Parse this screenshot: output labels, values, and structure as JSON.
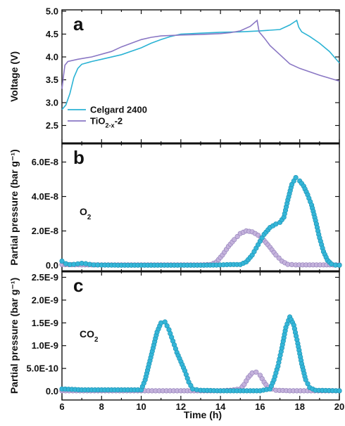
{
  "colors": {
    "celgard": "#2bb3d4",
    "tio2": "#8a77c4",
    "celgard_marker": "#35b6d8",
    "tio2_marker": "#c4b2dc",
    "axis": "#111111"
  },
  "xlabel": "Time (h)",
  "chart_data": [
    {
      "panel": "a",
      "type": "line",
      "ylabel": "Voltage (V)",
      "xlim": [
        6,
        20
      ],
      "ylim": [
        2.2,
        5.0
      ],
      "xticks": [
        6,
        8,
        10,
        12,
        14,
        16,
        18,
        20
      ],
      "yticks": [
        2.5,
        3.0,
        3.5,
        4.0,
        4.5,
        5.0
      ],
      "ytick_labels": [
        "2.5",
        "3.0",
        "3.5",
        "4.0",
        "4.5",
        "5.0"
      ],
      "legend": {
        "placement": "bottom-left",
        "items": [
          "Celgard 2400",
          "TiO<sub>2-x</sub>-2"
        ]
      },
      "series": [
        {
          "name": "Celgard 2400",
          "points": [
            [
              6.0,
              2.85
            ],
            [
              6.2,
              2.95
            ],
            [
              6.4,
              3.2
            ],
            [
              6.6,
              3.55
            ],
            [
              6.8,
              3.75
            ],
            [
              7.0,
              3.84
            ],
            [
              7.5,
              3.9
            ],
            [
              8,
              3.95
            ],
            [
              9,
              4.05
            ],
            [
              10,
              4.2
            ],
            [
              10.5,
              4.3
            ],
            [
              11,
              4.38
            ],
            [
              11.5,
              4.45
            ],
            [
              12,
              4.5
            ],
            [
              13,
              4.52
            ],
            [
              14,
              4.54
            ],
            [
              15,
              4.55
            ],
            [
              16,
              4.57
            ],
            [
              17,
              4.6
            ],
            [
              17.5,
              4.7
            ],
            [
              17.85,
              4.8
            ],
            [
              17.95,
              4.65
            ],
            [
              18.1,
              4.55
            ],
            [
              18.5,
              4.45
            ],
            [
              19,
              4.3
            ],
            [
              19.5,
              4.12
            ],
            [
              20,
              3.87
            ]
          ]
        },
        {
          "name": "TiO<sub>2-x</sub>-2",
          "points": [
            [
              6.0,
              3.3
            ],
            [
              6.08,
              3.6
            ],
            [
              6.15,
              3.82
            ],
            [
              6.3,
              3.9
            ],
            [
              6.8,
              3.95
            ],
            [
              7.5,
              4.0
            ],
            [
              8.5,
              4.12
            ],
            [
              9,
              4.22
            ],
            [
              9.5,
              4.3
            ],
            [
              10,
              4.38
            ],
            [
              10.5,
              4.43
            ],
            [
              11,
              4.46
            ],
            [
              12,
              4.48
            ],
            [
              13,
              4.49
            ],
            [
              14,
              4.51
            ],
            [
              14.5,
              4.53
            ],
            [
              15,
              4.57
            ],
            [
              15.5,
              4.67
            ],
            [
              15.85,
              4.8
            ],
            [
              15.95,
              4.55
            ],
            [
              16.2,
              4.42
            ],
            [
              16.5,
              4.25
            ],
            [
              17,
              4.05
            ],
            [
              17.5,
              3.85
            ],
            [
              18,
              3.75
            ],
            [
              19,
              3.6
            ],
            [
              20,
              3.47
            ]
          ]
        }
      ]
    },
    {
      "panel": "b",
      "type": "scatter",
      "ylabel": "Partial pressure (bar g⁻¹)",
      "annotation": "O<sub>2</sub>",
      "xlim": [
        6,
        20
      ],
      "ylim": [
        -1e-09,
        7e-08
      ],
      "yticks": [
        0,
        2e-08,
        4e-08,
        6e-08
      ],
      "ytick_labels": [
        "0.0",
        "2.0E-8",
        "4.0E-8",
        "6.0E-8"
      ],
      "series": [
        {
          "name": "Celgard 2400",
          "points": [
            [
              6.0,
              2.5e-09
            ],
            [
              6.2,
              1e-09
            ],
            [
              6.4,
              5e-10
            ],
            [
              6.6,
              6e-10
            ],
            [
              6.8,
              9e-10
            ],
            [
              7.0,
              1.2e-09
            ],
            [
              7.2,
              1e-09
            ],
            [
              7.4,
              6e-10
            ],
            [
              7.6,
              3e-10
            ],
            [
              8.0,
              2e-10
            ],
            [
              9.0,
              1e-10
            ],
            [
              10.0,
              1e-10
            ],
            [
              11.0,
              1e-10
            ],
            [
              12.0,
              1e-10
            ],
            [
              13.0,
              1e-10
            ],
            [
              13.8,
              2e-10
            ],
            [
              14.5,
              5e-10
            ],
            [
              15.0,
              5e-10
            ],
            [
              15.3,
              2e-09
            ],
            [
              15.6,
              6e-09
            ],
            [
              15.9,
              1.2e-08
            ],
            [
              16.2,
              1.8e-08
            ],
            [
              16.5,
              2.2e-08
            ],
            [
              16.8,
              2.4e-08
            ],
            [
              17.0,
              2.5e-08
            ],
            [
              17.2,
              2.8e-08
            ],
            [
              17.4,
              3.8e-08
            ],
            [
              17.6,
              4.7e-08
            ],
            [
              17.8,
              5.1e-08
            ],
            [
              18.0,
              4.9e-08
            ],
            [
              18.2,
              4.6e-08
            ],
            [
              18.4,
              4.1e-08
            ],
            [
              18.6,
              3.5e-08
            ],
            [
              18.8,
              2.6e-08
            ],
            [
              19.0,
              1.6e-08
            ],
            [
              19.2,
              8e-09
            ],
            [
              19.4,
              3e-09
            ],
            [
              19.6,
              8e-10
            ],
            [
              19.8,
              2e-10
            ],
            [
              20.0,
              1e-10
            ]
          ]
        },
        {
          "name": "TiO<sub>2-x</sub>-2",
          "points": [
            [
              6.0,
              5e-10
            ],
            [
              7.0,
              3e-10
            ],
            [
              8.0,
              3e-10
            ],
            [
              9.0,
              3e-10
            ],
            [
              10.0,
              3e-10
            ],
            [
              11.0,
              3e-10
            ],
            [
              12.0,
              3e-10
            ],
            [
              13.0,
              3e-10
            ],
            [
              13.5,
              5e-10
            ],
            [
              13.8,
              2e-09
            ],
            [
              14.1,
              6e-09
            ],
            [
              14.4,
              1.1e-08
            ],
            [
              14.7,
              1.5e-08
            ],
            [
              15.0,
              1.85e-08
            ],
            [
              15.3,
              2e-08
            ],
            [
              15.6,
              1.95e-08
            ],
            [
              15.9,
              1.75e-08
            ],
            [
              16.2,
              1.45e-08
            ],
            [
              16.5,
              1.05e-08
            ],
            [
              16.8,
              6e-09
            ],
            [
              17.1,
              2.5e-09
            ],
            [
              17.4,
              6e-10
            ],
            [
              17.8,
              3e-10
            ],
            [
              18.5,
              3e-10
            ],
            [
              19.2,
              3e-10
            ],
            [
              20.0,
              3e-10
            ]
          ]
        }
      ]
    },
    {
      "panel": "c",
      "type": "scatter",
      "ylabel": "Partial pressure (bar g⁻¹)",
      "annotation": "CO<sub>2</sub>",
      "xlim": [
        6,
        20
      ],
      "ylim": [
        -1e-10,
        2.6e-09
      ],
      "yticks": [
        0,
        5e-10,
        1e-09,
        1.5e-09,
        2e-09,
        2.5e-09
      ],
      "ytick_labels": [
        "0.0",
        "5.0E-10",
        "1.0E-9",
        "1.5E-9",
        "2.0E-9",
        "2.5E-9"
      ],
      "series": [
        {
          "name": "Celgard 2400",
          "points": [
            [
              6.0,
              5e-11
            ],
            [
              7.0,
              3e-11
            ],
            [
              8.0,
              3e-11
            ],
            [
              9.0,
              3e-11
            ],
            [
              10.0,
              3e-11
            ],
            [
              10.2,
              2.5e-10
            ],
            [
              10.4,
              6e-10
            ],
            [
              10.6,
              9.5e-10
            ],
            [
              10.8,
              1.3e-09
            ],
            [
              11.0,
              1.5e-09
            ],
            [
              11.2,
              1.52e-09
            ],
            [
              11.4,
              1.35e-09
            ],
            [
              11.6,
              1.1e-09
            ],
            [
              11.8,
              8.5e-10
            ],
            [
              12.0,
              6.5e-10
            ],
            [
              12.2,
              4.5e-10
            ],
            [
              12.4,
              2e-10
            ],
            [
              12.6,
              5e-11
            ],
            [
              13.0,
              2e-11
            ],
            [
              14.0,
              1e-11
            ],
            [
              15.0,
              1e-11
            ],
            [
              16.0,
              1e-11
            ],
            [
              16.5,
              5e-11
            ],
            [
              16.7,
              2.5e-10
            ],
            [
              16.9,
              5.5e-10
            ],
            [
              17.1,
              9.5e-10
            ],
            [
              17.3,
              1.4e-09
            ],
            [
              17.5,
              1.63e-09
            ],
            [
              17.7,
              1.45e-09
            ],
            [
              17.9,
              1.05e-09
            ],
            [
              18.1,
              6e-10
            ],
            [
              18.3,
              2.5e-10
            ],
            [
              18.5,
              8e-11
            ],
            [
              18.8,
              2e-11
            ],
            [
              20.0,
              1e-11
            ]
          ]
        },
        {
          "name": "TiO<sub>2-x</sub>-2",
          "points": [
            [
              6.0,
              1e-11
            ],
            [
              8.0,
              1e-11
            ],
            [
              10.0,
              1e-11
            ],
            [
              12.0,
              1e-11
            ],
            [
              13.0,
              1e-11
            ],
            [
              14.0,
              1e-11
            ],
            [
              14.5,
              2e-11
            ],
            [
              15.0,
              5e-11
            ],
            [
              15.2,
              1.5e-10
            ],
            [
              15.4,
              3e-10
            ],
            [
              15.6,
              4e-10
            ],
            [
              15.8,
              4.2e-10
            ],
            [
              16.0,
              3.5e-10
            ],
            [
              16.2,
              2e-10
            ],
            [
              16.4,
              8e-11
            ],
            [
              16.8,
              2e-11
            ],
            [
              17.5,
              1e-11
            ],
            [
              20.0,
              1e-11
            ]
          ]
        }
      ]
    }
  ]
}
